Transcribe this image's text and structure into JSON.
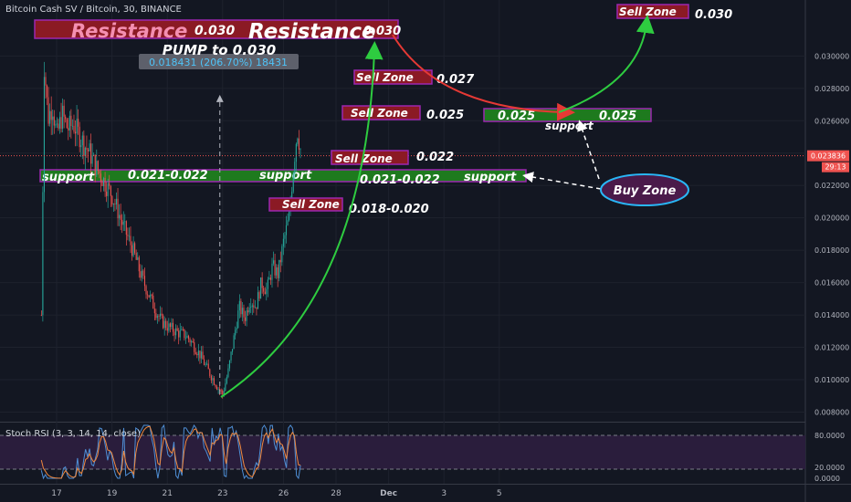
{
  "header": {
    "title": "Bitcoin Cash SV / Bitcoin, 30, BINANCE"
  },
  "price_axis": {
    "ticks": [
      "0.030000",
      "0.028000",
      "0.026000",
      "0.024000",
      "0.022000",
      "0.020000",
      "0.018000",
      "0.016000",
      "0.014000",
      "0.012000",
      "0.010000",
      "0.008000"
    ],
    "current_price": "0.023836",
    "countdown": "29:13"
  },
  "time_axis": {
    "ticks": [
      "17",
      "19",
      "21",
      "23",
      "26",
      "28",
      "Dec",
      "3",
      "5"
    ]
  },
  "measure": {
    "label": "0.018431 (206.70%) 18431"
  },
  "annotations": {
    "resistance_word": "Resistance",
    "resistance_value": "0.030",
    "resistance_word_2": "Resistance",
    "resistance_value_2": "0.030",
    "pump": "PUMP to 0.030",
    "support_word": "support",
    "support_range": "0.021-0.022",
    "sell_zone_word": "Sell Zone",
    "sz_030_value": "0.030",
    "sz_027_value": "0.027",
    "sz_025_value": "0.025",
    "sz_022_value": "0.022",
    "sz_018_value": "0.018-0.020",
    "support_025_left": "0.025",
    "support_025_right": "0.025",
    "buy_zone": "Buy Zone"
  },
  "indicator": {
    "label": "Stoch RSI (3, 3, 14, 14, close)",
    "ticks": [
      "80.0000",
      "20.0000",
      "0.0000"
    ]
  },
  "colors": {
    "background": "#131722",
    "candle_up": "#26a69a",
    "candle_down": "#ef5350",
    "resistance_fill": "#8b1a24",
    "support_fill": "#1e7a1e",
    "sell_zone_fill": "#8b1a24",
    "zone_border": "#9c27b0",
    "arrow_green": "#2ecc40",
    "arrow_red": "#e53935",
    "buy_zone_fill": "#4a1a4a",
    "buy_zone_border": "#29b6f6",
    "current_price": "#ef5350"
  },
  "chart_data": {
    "type": "candlestick",
    "title": "Bitcoin Cash SV / Bitcoin, 30, BINANCE",
    "ylim": [
      0.0078,
      0.0316
    ],
    "close_path": [
      [
        16.45,
        0.014
      ],
      [
        16.55,
        0.0295
      ],
      [
        16.7,
        0.0262
      ],
      [
        16.85,
        0.027
      ],
      [
        17.0,
        0.025
      ],
      [
        17.2,
        0.0264
      ],
      [
        17.4,
        0.0255
      ],
      [
        17.6,
        0.0258
      ],
      [
        17.8,
        0.0252
      ],
      [
        18.0,
        0.0245
      ],
      [
        18.2,
        0.024
      ],
      [
        18.4,
        0.0232
      ],
      [
        18.6,
        0.0226
      ],
      [
        18.8,
        0.022
      ],
      [
        19.0,
        0.0214
      ],
      [
        19.2,
        0.0205
      ],
      [
        19.4,
        0.0195
      ],
      [
        19.6,
        0.0187
      ],
      [
        19.8,
        0.0178
      ],
      [
        20.0,
        0.0167
      ],
      [
        20.2,
        0.0158
      ],
      [
        20.4,
        0.015
      ],
      [
        20.6,
        0.0142
      ],
      [
        20.8,
        0.0136
      ],
      [
        21.0,
        0.0133
      ],
      [
        21.2,
        0.0131
      ],
      [
        21.4,
        0.0129
      ],
      [
        21.6,
        0.0128
      ],
      [
        21.8,
        0.0125
      ],
      [
        22.0,
        0.012
      ],
      [
        22.2,
        0.0115
      ],
      [
        22.4,
        0.0108
      ],
      [
        22.6,
        0.0102
      ],
      [
        22.8,
        0.0096
      ],
      [
        23.0,
        0.0091
      ],
      [
        23.2,
        0.0105
      ],
      [
        23.4,
        0.0125
      ],
      [
        23.6,
        0.0145
      ],
      [
        23.8,
        0.0138
      ],
      [
        24.0,
        0.015
      ],
      [
        24.2,
        0.0145
      ],
      [
        24.4,
        0.016
      ],
      [
        24.6,
        0.0155
      ],
      [
        24.8,
        0.017
      ],
      [
        25.0,
        0.0165
      ],
      [
        25.2,
        0.0185
      ],
      [
        25.4,
        0.02
      ],
      [
        25.55,
        0.023
      ],
      [
        25.7,
        0.0255
      ],
      [
        25.85,
        0.0238
      ]
    ],
    "levels": {
      "resistance": 0.03,
      "support": [
        0.021,
        0.022
      ],
      "sell_zones": [
        0.03,
        0.027,
        0.025,
        0.022,
        0.019
      ],
      "support_025": 0.025,
      "current": 0.023836
    },
    "measure_low": 0.0091,
    "measure_high": 0.0276
  }
}
